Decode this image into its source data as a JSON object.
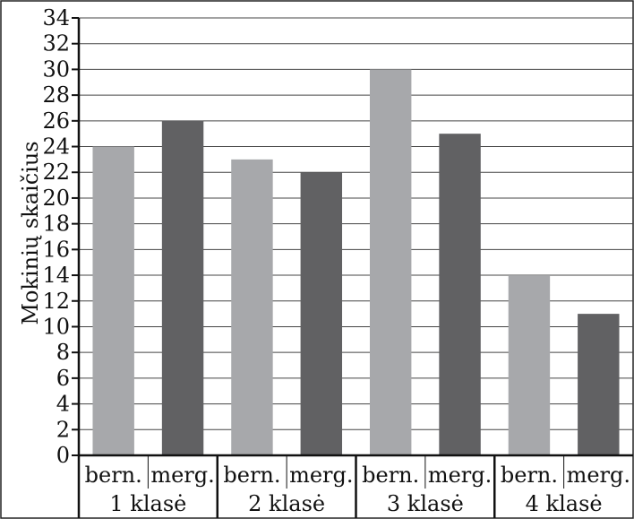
{
  "chart_data": {
    "type": "bar",
    "title": "",
    "xlabel": "",
    "ylabel": "Mokinių skaičius",
    "ylim": [
      0,
      34
    ],
    "yticks": [
      0,
      2,
      4,
      6,
      8,
      10,
      12,
      14,
      16,
      18,
      20,
      22,
      24,
      26,
      28,
      30,
      32,
      34
    ],
    "grid": true,
    "bars": [
      {
        "group": "1 klasė",
        "label": "bern.",
        "value": 24,
        "color": "#a7a8ab"
      },
      {
        "group": "1 klasė",
        "label": "merg.",
        "value": 26,
        "color": "#616163"
      },
      {
        "group": "2 klasė",
        "label": "bern.",
        "value": 23,
        "color": "#a7a8ab"
      },
      {
        "group": "2 klasė",
        "label": "merg.",
        "value": 22,
        "color": "#616163"
      },
      {
        "group": "3 klasė",
        "label": "bern.",
        "value": 30,
        "color": "#a7a8ab"
      },
      {
        "group": "3 klasė",
        "label": "merg.",
        "value": 25,
        "color": "#616163"
      },
      {
        "group": "4 klasė",
        "label": "bern.",
        "value": 14,
        "color": "#a7a8ab"
      },
      {
        "group": "4 klasė",
        "label": "merg.",
        "value": 11,
        "color": "#616163"
      }
    ],
    "groups": [
      "1 klasė",
      "2 klasė",
      "3 klasė",
      "4 klasė"
    ]
  }
}
